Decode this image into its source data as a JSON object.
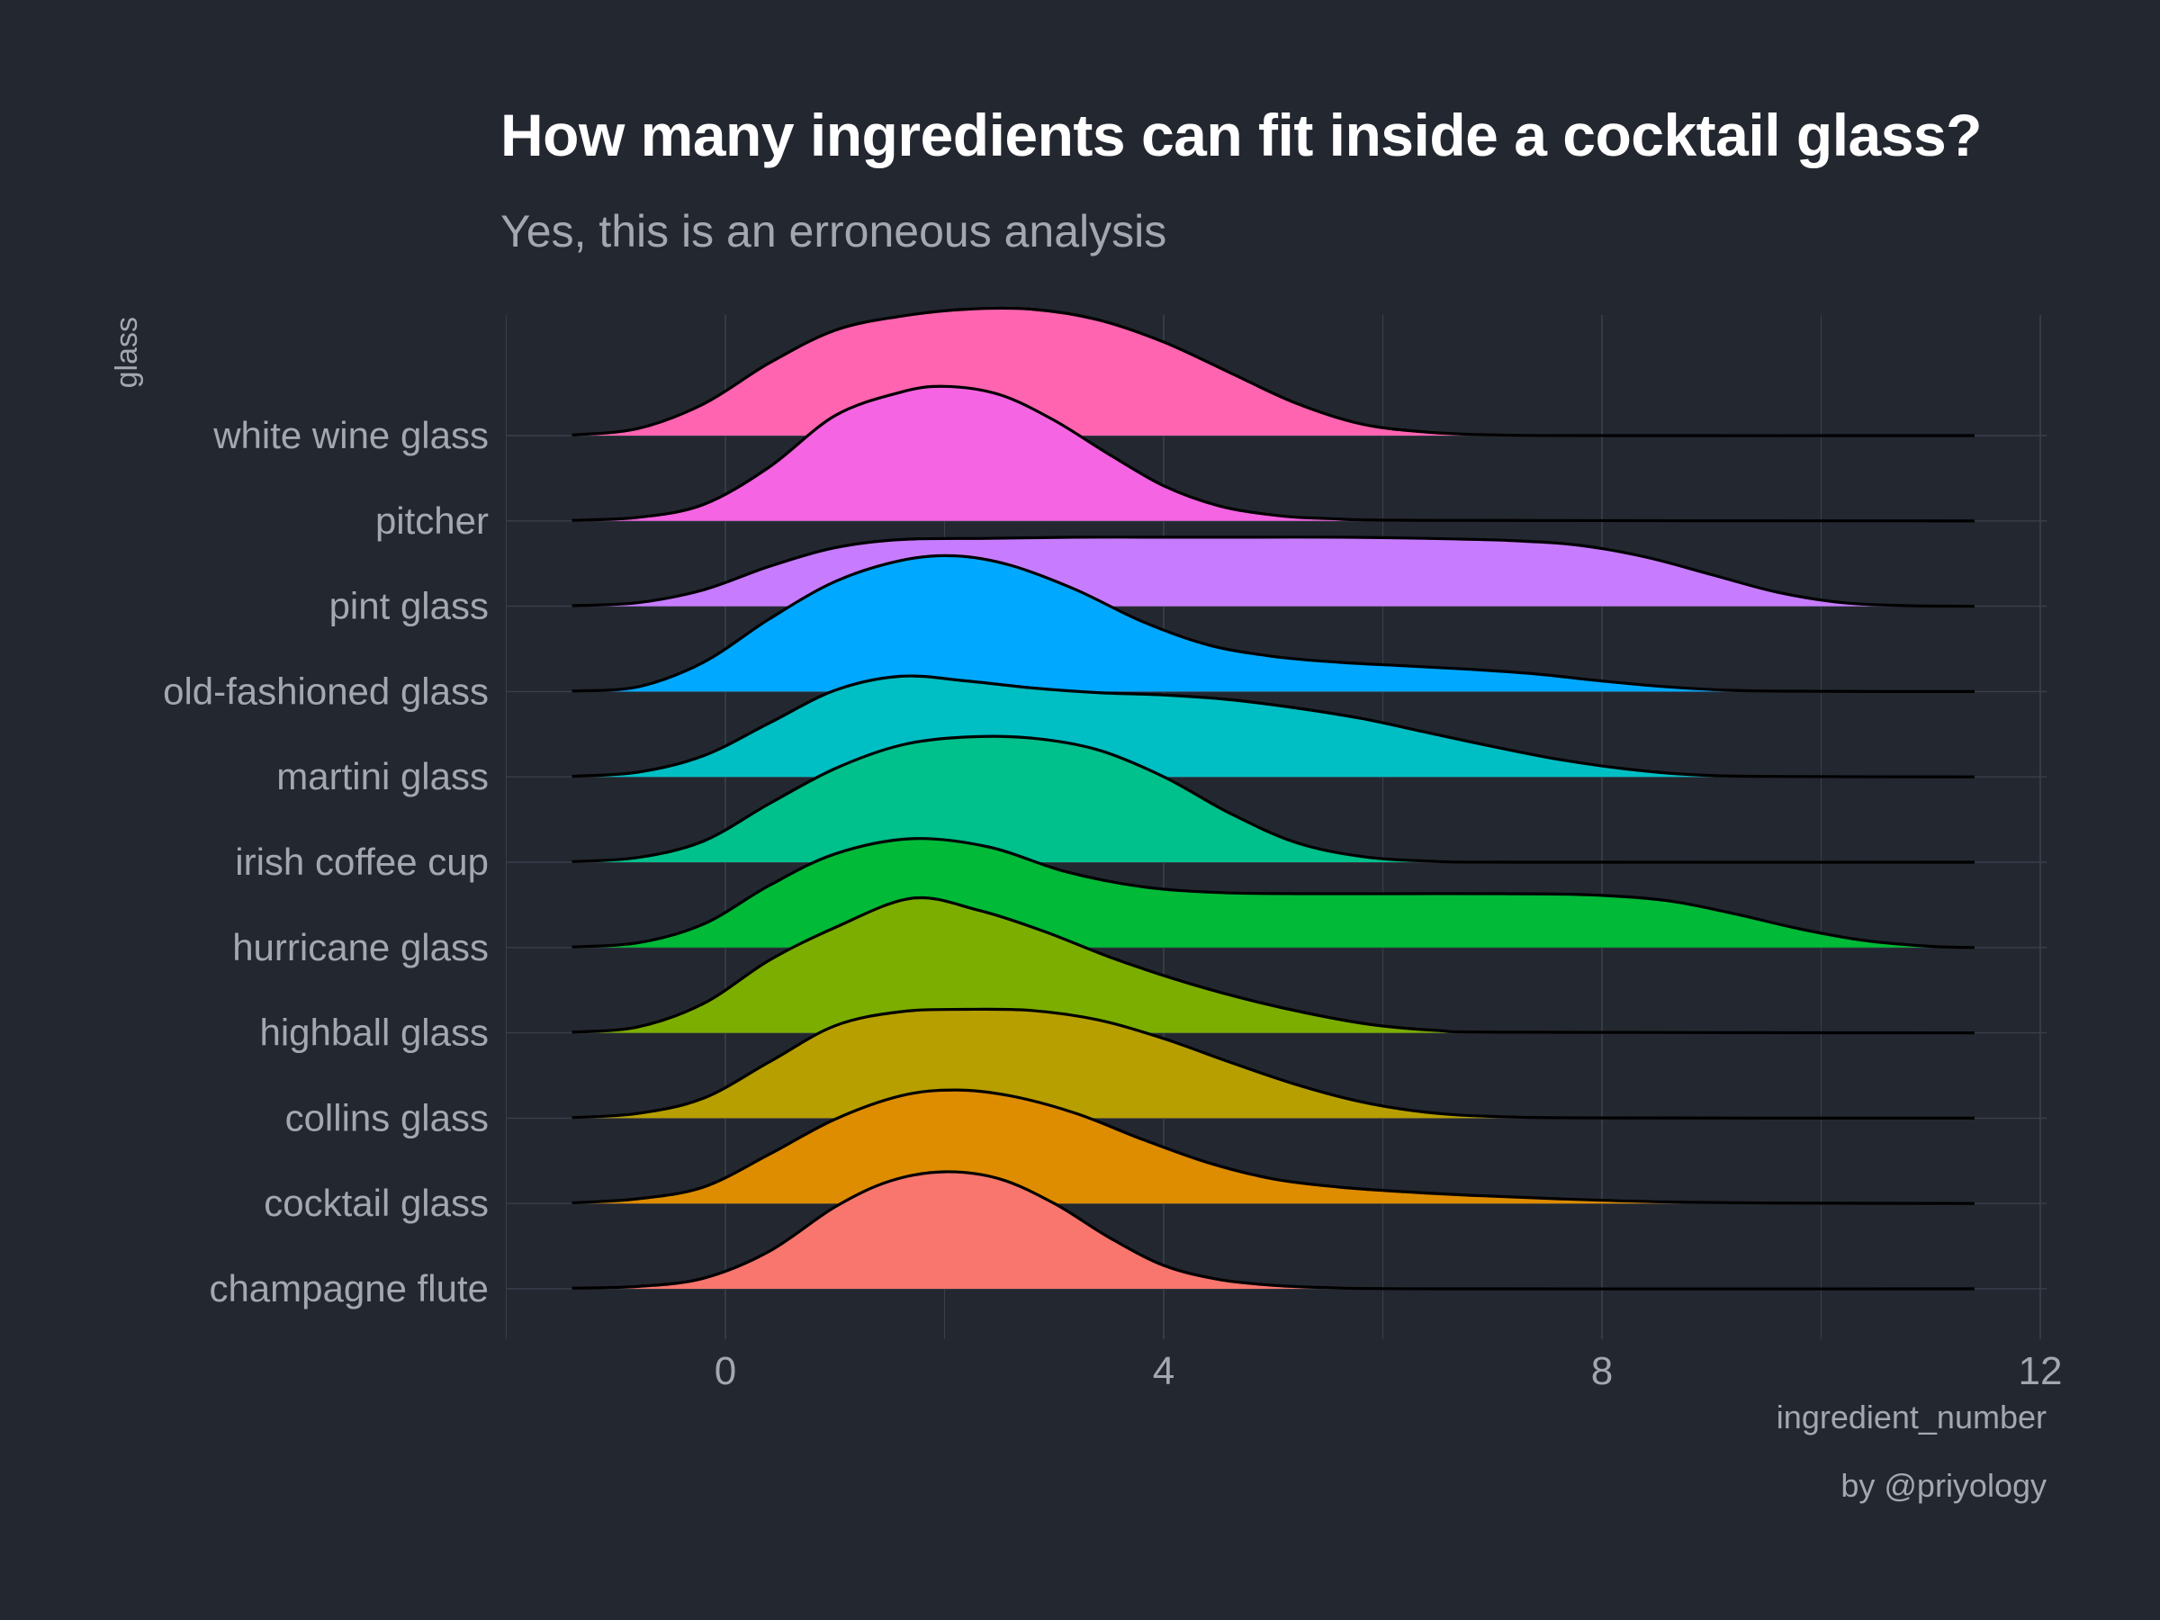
{
  "title": "How many ingredients can fit inside a cocktail glass?",
  "subtitle": "Yes, this is an erroneous analysis",
  "caption": "by @priyology",
  "colors": {
    "background": "#232730",
    "grid": "#3a3f4a",
    "text_muted": "#a3a8b0",
    "title": "#ffffff",
    "outline": "#000000"
  },
  "chart_data": {
    "type": "ridgeline",
    "xlabel": "ingredient_number",
    "ylabel": "glass",
    "xlim": [
      -1.6,
      11.4
    ],
    "xticks": [
      0,
      4,
      8,
      12
    ],
    "grid": true,
    "legend": "none",
    "categories": [
      "champagne flute",
      "cocktail glass",
      "collins glass",
      "highball glass",
      "hurricane glass",
      "irish coffee cup",
      "martini glass",
      "old-fashioned glass",
      "pint glass",
      "pitcher",
      "white wine glass"
    ],
    "series": [
      {
        "name": "champagne flute",
        "color": "#F8766D",
        "density": [
          [
            -1.4,
            0.005
          ],
          [
            -0.8,
            0.02
          ],
          [
            -0.2,
            0.09
          ],
          [
            0.4,
            0.32
          ],
          [
            1.0,
            0.7
          ],
          [
            1.5,
            0.92
          ],
          [
            2.0,
            1.0
          ],
          [
            2.5,
            0.94
          ],
          [
            3.0,
            0.73
          ],
          [
            3.5,
            0.44
          ],
          [
            4.0,
            0.2
          ],
          [
            4.5,
            0.08
          ],
          [
            5.0,
            0.03
          ],
          [
            5.5,
            0.01
          ],
          [
            6.5,
            0.0
          ],
          [
            11.4,
            0.0
          ]
        ]
      },
      {
        "name": "cocktail glass",
        "color": "#DE8C00",
        "density": [
          [
            -1.4,
            0.005
          ],
          [
            -0.8,
            0.04
          ],
          [
            -0.2,
            0.14
          ],
          [
            0.4,
            0.42
          ],
          [
            1.0,
            0.72
          ],
          [
            1.6,
            0.92
          ],
          [
            2.1,
            0.97
          ],
          [
            2.6,
            0.92
          ],
          [
            3.2,
            0.77
          ],
          [
            3.8,
            0.55
          ],
          [
            4.4,
            0.35
          ],
          [
            5.0,
            0.21
          ],
          [
            5.6,
            0.14
          ],
          [
            6.2,
            0.1
          ],
          [
            6.8,
            0.07
          ],
          [
            7.6,
            0.04
          ],
          [
            8.5,
            0.015
          ],
          [
            9.5,
            0.004
          ],
          [
            11.4,
            0.0
          ]
        ]
      },
      {
        "name": "collins glass",
        "color": "#B79F00",
        "density": [
          [
            -1.4,
            0.005
          ],
          [
            -0.8,
            0.04
          ],
          [
            -0.2,
            0.17
          ],
          [
            0.4,
            0.48
          ],
          [
            1.0,
            0.79
          ],
          [
            1.6,
            0.91
          ],
          [
            2.2,
            0.93
          ],
          [
            2.8,
            0.92
          ],
          [
            3.4,
            0.84
          ],
          [
            4.0,
            0.68
          ],
          [
            4.6,
            0.48
          ],
          [
            5.2,
            0.29
          ],
          [
            5.8,
            0.14
          ],
          [
            6.4,
            0.05
          ],
          [
            7.0,
            0.015
          ],
          [
            8.0,
            0.002
          ],
          [
            11.4,
            0.0
          ]
        ]
      },
      {
        "name": "highball glass",
        "color": "#7CAE00",
        "density": [
          [
            -1.4,
            0.005
          ],
          [
            -0.8,
            0.05
          ],
          [
            -0.2,
            0.25
          ],
          [
            0.4,
            0.62
          ],
          [
            1.0,
            0.9
          ],
          [
            1.7,
            1.15
          ],
          [
            2.3,
            1.05
          ],
          [
            2.9,
            0.87
          ],
          [
            3.5,
            0.65
          ],
          [
            4.1,
            0.46
          ],
          [
            4.7,
            0.3
          ],
          [
            5.3,
            0.17
          ],
          [
            5.9,
            0.07
          ],
          [
            6.5,
            0.02
          ],
          [
            7.2,
            0.005
          ],
          [
            11.4,
            0.0
          ]
        ]
      },
      {
        "name": "hurricane glass",
        "color": "#00BA38",
        "density": [
          [
            -1.4,
            0.005
          ],
          [
            -0.8,
            0.04
          ],
          [
            -0.2,
            0.2
          ],
          [
            0.4,
            0.53
          ],
          [
            1.0,
            0.8
          ],
          [
            1.7,
            0.93
          ],
          [
            2.4,
            0.86
          ],
          [
            3.1,
            0.65
          ],
          [
            3.8,
            0.52
          ],
          [
            4.5,
            0.47
          ],
          [
            5.3,
            0.46
          ],
          [
            6.2,
            0.46
          ],
          [
            7.1,
            0.46
          ],
          [
            7.9,
            0.45
          ],
          [
            8.6,
            0.4
          ],
          [
            9.2,
            0.29
          ],
          [
            9.8,
            0.16
          ],
          [
            10.4,
            0.06
          ],
          [
            11.0,
            0.01
          ],
          [
            11.4,
            0.0
          ]
        ]
      },
      {
        "name": "irish coffee cup",
        "color": "#00C08B",
        "density": [
          [
            -1.4,
            0.005
          ],
          [
            -0.8,
            0.04
          ],
          [
            -0.2,
            0.18
          ],
          [
            0.4,
            0.5
          ],
          [
            1.0,
            0.8
          ],
          [
            1.6,
            1.0
          ],
          [
            2.2,
            1.07
          ],
          [
            2.8,
            1.06
          ],
          [
            3.4,
            0.96
          ],
          [
            4.0,
            0.73
          ],
          [
            4.6,
            0.42
          ],
          [
            5.2,
            0.17
          ],
          [
            5.8,
            0.05
          ],
          [
            6.4,
            0.01
          ],
          [
            7.2,
            0.0
          ],
          [
            11.4,
            0.0
          ]
        ]
      },
      {
        "name": "martini glass",
        "color": "#00BFC4",
        "density": [
          [
            -1.4,
            0.005
          ],
          [
            -0.8,
            0.04
          ],
          [
            -0.2,
            0.18
          ],
          [
            0.4,
            0.46
          ],
          [
            1.0,
            0.74
          ],
          [
            1.6,
            0.86
          ],
          [
            2.2,
            0.82
          ],
          [
            2.8,
            0.76
          ],
          [
            3.4,
            0.72
          ],
          [
            4.0,
            0.7
          ],
          [
            4.6,
            0.66
          ],
          [
            5.2,
            0.59
          ],
          [
            5.8,
            0.5
          ],
          [
            6.4,
            0.38
          ],
          [
            7.0,
            0.26
          ],
          [
            7.6,
            0.15
          ],
          [
            8.2,
            0.07
          ],
          [
            8.8,
            0.02
          ],
          [
            9.5,
            0.004
          ],
          [
            11.4,
            0.0
          ]
        ]
      },
      {
        "name": "old-fashioned glass",
        "color": "#00A9FF",
        "density": [
          [
            -1.4,
            0.005
          ],
          [
            -0.8,
            0.04
          ],
          [
            -0.2,
            0.25
          ],
          [
            0.4,
            0.62
          ],
          [
            1.0,
            0.94
          ],
          [
            1.6,
            1.12
          ],
          [
            2.1,
            1.16
          ],
          [
            2.6,
            1.08
          ],
          [
            3.2,
            0.87
          ],
          [
            3.8,
            0.6
          ],
          [
            4.4,
            0.4
          ],
          [
            5.0,
            0.3
          ],
          [
            5.6,
            0.25
          ],
          [
            6.2,
            0.22
          ],
          [
            6.8,
            0.19
          ],
          [
            7.4,
            0.15
          ],
          [
            8.0,
            0.09
          ],
          [
            8.6,
            0.04
          ],
          [
            9.2,
            0.01
          ],
          [
            10.0,
            0.002
          ],
          [
            11.4,
            0.0
          ]
        ]
      },
      {
        "name": "pint glass",
        "color": "#C77CFF",
        "density": [
          [
            -1.4,
            0.005
          ],
          [
            -0.8,
            0.03
          ],
          [
            -0.2,
            0.14
          ],
          [
            0.4,
            0.34
          ],
          [
            1.0,
            0.5
          ],
          [
            1.6,
            0.57
          ],
          [
            2.4,
            0.58
          ],
          [
            3.2,
            0.59
          ],
          [
            4.0,
            0.59
          ],
          [
            4.8,
            0.59
          ],
          [
            5.6,
            0.59
          ],
          [
            6.4,
            0.58
          ],
          [
            7.2,
            0.56
          ],
          [
            7.8,
            0.52
          ],
          [
            8.4,
            0.42
          ],
          [
            9.0,
            0.27
          ],
          [
            9.6,
            0.12
          ],
          [
            10.2,
            0.03
          ],
          [
            10.8,
            0.005
          ],
          [
            11.4,
            0.0
          ]
        ]
      },
      {
        "name": "pitcher",
        "color": "#F564E3",
        "density": [
          [
            -1.4,
            0.005
          ],
          [
            -0.8,
            0.03
          ],
          [
            -0.2,
            0.14
          ],
          [
            0.4,
            0.46
          ],
          [
            1.0,
            0.9
          ],
          [
            1.6,
            1.1
          ],
          [
            2.0,
            1.15
          ],
          [
            2.5,
            1.08
          ],
          [
            3.0,
            0.86
          ],
          [
            3.5,
            0.57
          ],
          [
            4.0,
            0.3
          ],
          [
            4.5,
            0.13
          ],
          [
            5.0,
            0.05
          ],
          [
            5.5,
            0.02
          ],
          [
            6.5,
            0.005
          ],
          [
            11.4,
            0.0
          ]
        ]
      },
      {
        "name": "white wine glass",
        "color": "#FF64B0",
        "density": [
          [
            -1.4,
            0.005
          ],
          [
            -0.8,
            0.06
          ],
          [
            -0.2,
            0.27
          ],
          [
            0.4,
            0.62
          ],
          [
            1.0,
            0.9
          ],
          [
            1.6,
            1.02
          ],
          [
            2.2,
            1.08
          ],
          [
            2.8,
            1.08
          ],
          [
            3.4,
            0.99
          ],
          [
            4.0,
            0.8
          ],
          [
            4.6,
            0.54
          ],
          [
            5.2,
            0.28
          ],
          [
            5.8,
            0.1
          ],
          [
            6.4,
            0.03
          ],
          [
            7.0,
            0.006
          ],
          [
            8.0,
            0.0
          ],
          [
            11.4,
            0.0
          ]
        ]
      }
    ]
  }
}
